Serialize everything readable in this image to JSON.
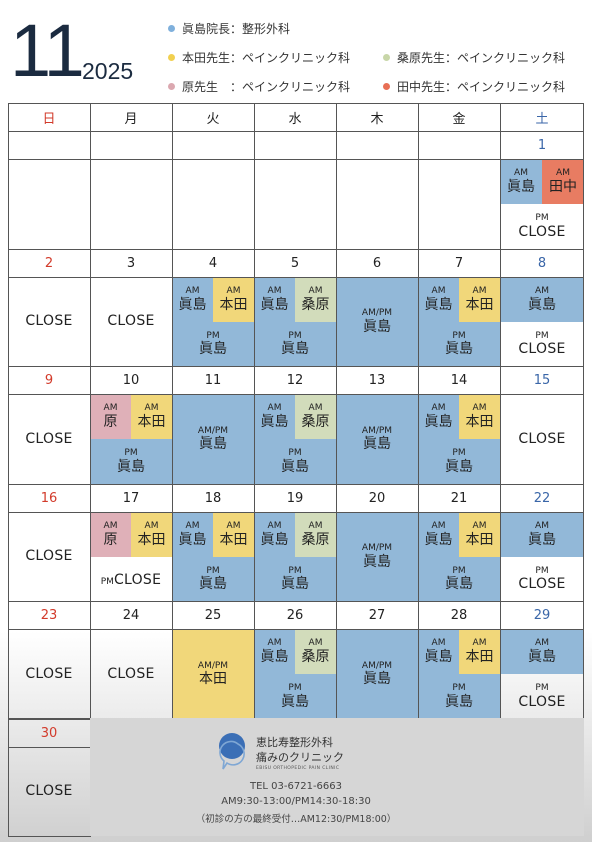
{
  "header": {
    "month": "11",
    "year": "2025"
  },
  "legend": [
    {
      "text": "眞島院長：整形外科",
      "color": "#7fb0dc"
    },
    {
      "text": "本田先生：ペインクリニック科",
      "color": "#f1d050"
    },
    {
      "text": "桑原先生：ペインクリニック科",
      "color": "#c8d6a8"
    },
    {
      "text": "原先生　：ペインクリニック科",
      "color": "#dba8b0"
    },
    {
      "text": "田中先生：ペインクリニック科",
      "color": "#e86f55"
    }
  ],
  "weekdays": [
    "日",
    "月",
    "火",
    "水",
    "木",
    "金",
    "土"
  ],
  "colors": {
    "sun": "#d23a2a",
    "sat": "#3a66a8",
    "normal": "#222222"
  },
  "weeks": [
    {
      "days": [
        "",
        "",
        "",
        "",
        "",
        "",
        "1"
      ]
    },
    {
      "days": [
        "2",
        "3",
        "4",
        "5",
        "6",
        "7",
        "8"
      ]
    },
    {
      "days": [
        "9",
        "10",
        "11",
        "12",
        "13",
        "14",
        "15"
      ]
    },
    {
      "days": [
        "16",
        "17",
        "18",
        "19",
        "20",
        "21",
        "22"
      ]
    },
    {
      "days": [
        "23",
        "24",
        "25",
        "26",
        "27",
        "28",
        "29"
      ]
    },
    {
      "days": [
        "30"
      ]
    }
  ],
  "labels": {
    "am": "AM",
    "pm": "PM",
    "ampm": "AM/PM",
    "close": "CLOSE"
  },
  "doctors": {
    "majima": "眞島",
    "honda": "本田",
    "kuwahara": "桑原",
    "hara": "原",
    "tanaka": "田中"
  },
  "footer": {
    "clinic_name_1": "恵比寿整形外科",
    "clinic_name_2": "痛みのクリニック",
    "clinic_en": "EBISU ORTHOPEDIC PAIN CLINIC",
    "tel": "TEL 03-6721-6663",
    "hours": "AM9:30-13:00/PM14:30-18:30",
    "note": "（初診の方の最終受付…AM12:30/PM18:00）"
  }
}
